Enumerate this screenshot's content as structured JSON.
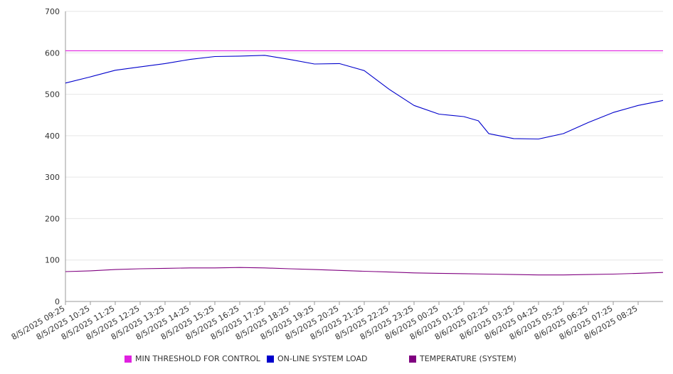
{
  "chart_data": {
    "type": "line",
    "ylim": [
      0,
      700
    ],
    "yticks": [
      0,
      100,
      200,
      300,
      400,
      500,
      600,
      700
    ],
    "categories": [
      "8/5/2025 09:25",
      "8/5/2025 10:25",
      "8/5/2025 11:25",
      "8/5/2025 12:25",
      "8/5/2025 13:25",
      "8/5/2025 14:25",
      "8/5/2025 15:25",
      "8/5/2025 16:25",
      "8/5/2025 17:25",
      "8/5/2025 18:25",
      "8/5/2025 19:25",
      "8/5/2025 20:25",
      "8/5/2025 21:25",
      "8/5/2025 22:25",
      "8/5/2025 23:25",
      "8/6/2025 00:25",
      "8/6/2025 01:25",
      "8/6/2025 02:25",
      "8/6/2025 03:25",
      "8/6/2025 04:25",
      "8/6/2025 05:25",
      "8/6/2025 06:25",
      "8/6/2025 07:25",
      "8/6/2025 08:25"
    ],
    "x_end": "8/6/2025 09:25",
    "grid": true,
    "legend_position": "bottom",
    "series": [
      {
        "name": "MIN THRESHOLD FOR CONTROL",
        "color": "#e020e0",
        "x": [
          "8/5/2025 09:25",
          "8/6/2025 09:25"
        ],
        "values": [
          605,
          605
        ]
      },
      {
        "name": "ON-LINE SYSTEM LOAD",
        "color": "#0000cc",
        "x": [
          "8/5/2025 09:25",
          "8/5/2025 10:25",
          "8/5/2025 11:25",
          "8/5/2025 12:25",
          "8/5/2025 13:25",
          "8/5/2025 14:25",
          "8/5/2025 15:25",
          "8/5/2025 16:25",
          "8/5/2025 17:25",
          "8/5/2025 18:25",
          "8/5/2025 19:25",
          "8/5/2025 20:25",
          "8/5/2025 21:25",
          "8/5/2025 22:25",
          "8/5/2025 23:25",
          "8/6/2025 00:25",
          "8/6/2025 01:25",
          "8/6/2025 02:00",
          "8/6/2025 02:25",
          "8/6/2025 03:25",
          "8/6/2025 04:25",
          "8/6/2025 05:25",
          "8/6/2025 06:25",
          "8/6/2025 07:25",
          "8/6/2025 08:25",
          "8/6/2025 09:25"
        ],
        "values": [
          527,
          542,
          558,
          566,
          574,
          584,
          591,
          592,
          594,
          584,
          573,
          574,
          557,
          512,
          473,
          452,
          446,
          436,
          405,
          393,
          392,
          405,
          432,
          456,
          473,
          485
        ]
      },
      {
        "name": "TEMPERATURE (SYSTEM)",
        "color": "#800080",
        "x": [
          "8/5/2025 09:25",
          "8/5/2025 10:25",
          "8/5/2025 11:25",
          "8/5/2025 12:25",
          "8/5/2025 13:25",
          "8/5/2025 14:25",
          "8/5/2025 15:25",
          "8/5/2025 16:25",
          "8/5/2025 17:25",
          "8/5/2025 18:25",
          "8/5/2025 19:25",
          "8/5/2025 20:25",
          "8/5/2025 21:25",
          "8/5/2025 22:25",
          "8/5/2025 23:25",
          "8/6/2025 00:25",
          "8/6/2025 01:25",
          "8/6/2025 02:25",
          "8/6/2025 03:25",
          "8/6/2025 04:25",
          "8/6/2025 05:25",
          "8/6/2025 06:25",
          "8/6/2025 07:25",
          "8/6/2025 08:25",
          "8/6/2025 09:25"
        ],
        "values": [
          72,
          74,
          77,
          79,
          80,
          81,
          81,
          82,
          81,
          79,
          77,
          75,
          73,
          71,
          69,
          68,
          67,
          66,
          65,
          64,
          64,
          65,
          66,
          68,
          70
        ]
      }
    ]
  }
}
